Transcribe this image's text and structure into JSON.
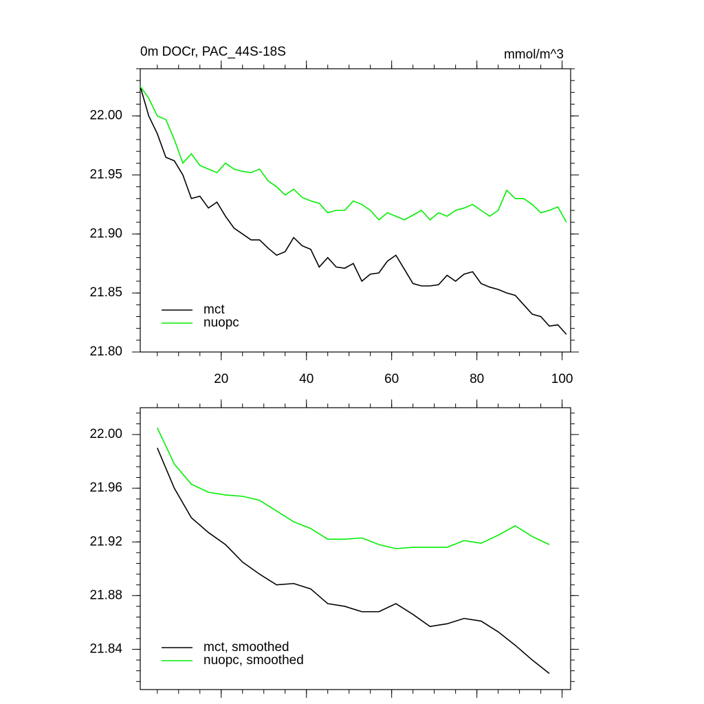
{
  "chart_data": [
    {
      "type": "line",
      "title": "0m DOCr, PAC_44S-18S",
      "units": "mmol/m^3",
      "x": [
        1,
        3,
        5,
        7,
        9,
        11,
        13,
        15,
        17,
        19,
        21,
        23,
        25,
        27,
        29,
        31,
        33,
        35,
        37,
        39,
        41,
        43,
        45,
        47,
        49,
        51,
        53,
        55,
        57,
        59,
        61,
        63,
        65,
        67,
        69,
        71,
        73,
        75,
        77,
        79,
        81,
        83,
        85,
        87,
        89,
        91,
        93,
        95,
        97,
        99,
        101
      ],
      "series": [
        {
          "name": "mct",
          "color": "#000000",
          "values": [
            22.025,
            22.0,
            21.985,
            21.965,
            21.962,
            21.95,
            21.93,
            21.932,
            21.922,
            21.927,
            21.915,
            21.905,
            21.9,
            21.895,
            21.895,
            21.888,
            21.882,
            21.885,
            21.897,
            21.89,
            21.887,
            21.872,
            21.88,
            21.872,
            21.871,
            21.875,
            21.86,
            21.866,
            21.867,
            21.877,
            21.882,
            21.87,
            21.858,
            21.856,
            21.856,
            21.857,
            21.865,
            21.86,
            21.866,
            21.868,
            21.858,
            21.855,
            21.853,
            21.85,
            21.848,
            21.84,
            21.832,
            21.83,
            21.822,
            21.823,
            21.815
          ]
        },
        {
          "name": "nuopc",
          "color": "#00ee00",
          "values": [
            22.025,
            22.015,
            22.0,
            21.997,
            21.98,
            21.96,
            21.968,
            21.958,
            21.955,
            21.952,
            21.96,
            21.955,
            21.953,
            21.952,
            21.955,
            21.945,
            21.94,
            21.933,
            21.938,
            21.931,
            21.928,
            21.926,
            21.918,
            21.92,
            21.92,
            21.928,
            21.925,
            21.92,
            21.912,
            21.918,
            21.915,
            21.912,
            21.916,
            21.92,
            21.912,
            21.918,
            21.915,
            21.92,
            21.922,
            21.925,
            21.92,
            21.915,
            21.92,
            21.937,
            21.93,
            21.93,
            21.925,
            21.918,
            21.92,
            21.923,
            21.91
          ]
        }
      ],
      "xlim": [
        1,
        102
      ],
      "ylim": [
        21.8,
        22.04
      ],
      "xticks": [
        20,
        40,
        60,
        80,
        100
      ],
      "yticks": [
        {
          "value": 21.8,
          "label": "21.80"
        },
        21.85,
        {
          "value": 21.9,
          "label": "21.90"
        },
        21.95,
        {
          "value": 22.0,
          "label": "22.00"
        }
      ],
      "legend": "lower left"
    },
    {
      "type": "line",
      "x": [
        5,
        9,
        13,
        17,
        21,
        25,
        29,
        33,
        37,
        41,
        45,
        49,
        53,
        57,
        61,
        65,
        69,
        73,
        77,
        81,
        85,
        89,
        93,
        97
      ],
      "series": [
        {
          "name": "mct, smoothed",
          "color": "#000000",
          "values": [
            21.99,
            21.96,
            21.938,
            21.927,
            21.918,
            21.905,
            21.896,
            21.888,
            21.889,
            21.885,
            21.874,
            21.872,
            21.868,
            21.868,
            21.874,
            21.866,
            21.857,
            21.859,
            21.863,
            21.861,
            21.853,
            21.843,
            21.832,
            21.822
          ]
        },
        {
          "name": "nuopc, smoothed",
          "color": "#00ee00",
          "values": [
            22.005,
            21.978,
            21.963,
            21.957,
            21.955,
            21.954,
            21.951,
            21.943,
            21.935,
            21.93,
            21.922,
            21.922,
            21.923,
            21.918,
            21.915,
            21.916,
            21.916,
            21.916,
            21.921,
            21.919,
            21.925,
            21.932,
            21.924,
            21.918
          ]
        }
      ],
      "xlim": [
        1,
        102
      ],
      "ylim": [
        21.81,
        22.02
      ],
      "xticks": [
        20,
        40,
        60,
        80,
        100
      ],
      "yticks": [
        21.84,
        21.88,
        21.92,
        21.96,
        {
          "value": 22.0,
          "label": "22.00"
        }
      ],
      "legend": "lower left"
    }
  ]
}
